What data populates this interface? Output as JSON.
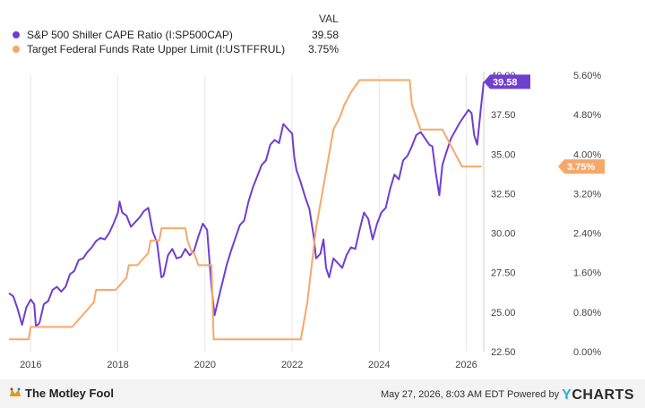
{
  "legend": {
    "header": "VAL",
    "items": [
      {
        "label": "S&P 500 Shiller CAPE Ratio (I:SP500CAP)",
        "value": "39.58",
        "color": "#6f3fd1"
      },
      {
        "label": "Target Federal Funds Rate Upper Limit (I:USTFFRUL)",
        "value": "3.75%",
        "color": "#f6a86a"
      }
    ]
  },
  "footer": {
    "brand": "The Motley Fool",
    "timestamp": "May 27, 2026, 8:03 AM EDT",
    "powered_by": "Powered by",
    "provider_prefix": "Y",
    "provider_rest": "CHARTS"
  },
  "chart_data": {
    "type": "line",
    "x_ticks": [
      "2016",
      "2018",
      "2020",
      "2022",
      "2024",
      "2026"
    ],
    "xlim": [
      2015.5,
      2026.4
    ],
    "y_left": {
      "ticks": [
        "22.50",
        "25.00",
        "27.50",
        "30.00",
        "32.50",
        "35.00",
        "37.50",
        "40.00"
      ],
      "ylim": [
        22.5,
        40.0
      ]
    },
    "y_right": {
      "ticks": [
        "0.00%",
        "0.80%",
        "1.60%",
        "2.40%",
        "3.20%",
        "4.00%",
        "4.80%",
        "5.60%"
      ],
      "ylim": [
        0.0,
        5.6
      ]
    },
    "grid": "vertical",
    "series": [
      {
        "name": "S&P 500 Shiller CAPE Ratio (I:SP500CAP)",
        "axis": "left",
        "color": "#6f3fd1",
        "end_label": "39.58",
        "points": [
          [
            2015.5,
            26.2
          ],
          [
            2015.6,
            26.0
          ],
          [
            2015.7,
            25.2
          ],
          [
            2015.8,
            24.2
          ],
          [
            2015.9,
            25.3
          ],
          [
            2016.0,
            25.8
          ],
          [
            2016.08,
            25.5
          ],
          [
            2016.12,
            24.1
          ],
          [
            2016.2,
            24.3
          ],
          [
            2016.3,
            25.5
          ],
          [
            2016.4,
            25.7
          ],
          [
            2016.5,
            26.4
          ],
          [
            2016.6,
            26.6
          ],
          [
            2016.7,
            26.3
          ],
          [
            2016.8,
            26.6
          ],
          [
            2016.9,
            27.4
          ],
          [
            2017.0,
            27.6
          ],
          [
            2017.1,
            28.3
          ],
          [
            2017.2,
            28.4
          ],
          [
            2017.3,
            28.8
          ],
          [
            2017.4,
            29.1
          ],
          [
            2017.5,
            29.5
          ],
          [
            2017.6,
            29.7
          ],
          [
            2017.7,
            29.6
          ],
          [
            2017.8,
            30.0
          ],
          [
            2017.9,
            30.6
          ],
          [
            2018.0,
            31.3
          ],
          [
            2018.04,
            32.0
          ],
          [
            2018.1,
            31.3
          ],
          [
            2018.2,
            31.1
          ],
          [
            2018.3,
            30.4
          ],
          [
            2018.4,
            30.7
          ],
          [
            2018.5,
            31.0
          ],
          [
            2018.6,
            31.4
          ],
          [
            2018.7,
            31.6
          ],
          [
            2018.8,
            30.1
          ],
          [
            2018.9,
            29.4
          ],
          [
            2019.0,
            27.2
          ],
          [
            2019.05,
            27.3
          ],
          [
            2019.15,
            28.6
          ],
          [
            2019.25,
            29.0
          ],
          [
            2019.35,
            28.4
          ],
          [
            2019.45,
            28.5
          ],
          [
            2019.55,
            29.0
          ],
          [
            2019.65,
            28.6
          ],
          [
            2019.75,
            28.9
          ],
          [
            2019.85,
            29.8
          ],
          [
            2019.95,
            30.6
          ],
          [
            2020.05,
            30.2
          ],
          [
            2020.15,
            26.6
          ],
          [
            2020.22,
            24.8
          ],
          [
            2020.35,
            26.3
          ],
          [
            2020.5,
            28.0
          ],
          [
            2020.6,
            28.9
          ],
          [
            2020.7,
            29.7
          ],
          [
            2020.8,
            30.5
          ],
          [
            2020.9,
            30.8
          ],
          [
            2021.0,
            32.0
          ],
          [
            2021.1,
            32.9
          ],
          [
            2021.2,
            33.6
          ],
          [
            2021.3,
            34.3
          ],
          [
            2021.4,
            34.6
          ],
          [
            2021.5,
            35.6
          ],
          [
            2021.6,
            35.9
          ],
          [
            2021.7,
            35.7
          ],
          [
            2021.8,
            36.9
          ],
          [
            2021.9,
            36.6
          ],
          [
            2022.0,
            36.3
          ],
          [
            2022.05,
            34.8
          ],
          [
            2022.1,
            34.0
          ],
          [
            2022.2,
            33.2
          ],
          [
            2022.3,
            32.3
          ],
          [
            2022.4,
            31.5
          ],
          [
            2022.5,
            29.7
          ],
          [
            2022.55,
            28.4
          ],
          [
            2022.65,
            28.7
          ],
          [
            2022.72,
            29.6
          ],
          [
            2022.78,
            27.8
          ],
          [
            2022.85,
            27.2
          ],
          [
            2022.95,
            28.4
          ],
          [
            2023.05,
            28.1
          ],
          [
            2023.15,
            27.8
          ],
          [
            2023.25,
            28.6
          ],
          [
            2023.35,
            29.1
          ],
          [
            2023.45,
            29.0
          ],
          [
            2023.55,
            30.2
          ],
          [
            2023.65,
            31.3
          ],
          [
            2023.75,
            30.9
          ],
          [
            2023.85,
            29.6
          ],
          [
            2023.95,
            30.6
          ],
          [
            2024.05,
            31.3
          ],
          [
            2024.15,
            31.6
          ],
          [
            2024.25,
            32.8
          ],
          [
            2024.35,
            33.7
          ],
          [
            2024.45,
            33.4
          ],
          [
            2024.55,
            34.6
          ],
          [
            2024.65,
            34.9
          ],
          [
            2024.75,
            35.5
          ],
          [
            2024.85,
            36.2
          ],
          [
            2024.95,
            36.4
          ],
          [
            2025.05,
            36.0
          ],
          [
            2025.15,
            35.6
          ],
          [
            2025.22,
            35.5
          ],
          [
            2025.3,
            33.8
          ],
          [
            2025.38,
            32.4
          ],
          [
            2025.45,
            34.3
          ],
          [
            2025.55,
            35.2
          ],
          [
            2025.65,
            36.0
          ],
          [
            2025.75,
            36.5
          ],
          [
            2025.85,
            37.0
          ],
          [
            2025.95,
            37.4
          ],
          [
            2026.05,
            37.8
          ],
          [
            2026.12,
            37.6
          ],
          [
            2026.18,
            36.2
          ],
          [
            2026.25,
            35.6
          ],
          [
            2026.33,
            37.8
          ],
          [
            2026.4,
            39.58
          ]
        ]
      },
      {
        "name": "Target Federal Funds Rate Upper Limit (I:USTFFRUL)",
        "axis": "right",
        "color": "#f6a86a",
        "end_label": "3.75%",
        "points": [
          [
            2015.5,
            0.25
          ],
          [
            2015.95,
            0.25
          ],
          [
            2016.0,
            0.5
          ],
          [
            2016.95,
            0.5
          ],
          [
            2017.2,
            0.75
          ],
          [
            2017.45,
            1.0
          ],
          [
            2017.5,
            1.25
          ],
          [
            2017.95,
            1.25
          ],
          [
            2018.2,
            1.5
          ],
          [
            2018.25,
            1.75
          ],
          [
            2018.45,
            1.75
          ],
          [
            2018.7,
            2.0
          ],
          [
            2018.75,
            2.25
          ],
          [
            2018.95,
            2.25
          ],
          [
            2019.0,
            2.5
          ],
          [
            2019.55,
            2.5
          ],
          [
            2019.6,
            2.25
          ],
          [
            2019.7,
            2.0
          ],
          [
            2019.75,
            2.0
          ],
          [
            2019.85,
            1.75
          ],
          [
            2020.15,
            1.75
          ],
          [
            2020.2,
            0.25
          ],
          [
            2022.2,
            0.25
          ],
          [
            2022.25,
            0.5
          ],
          [
            2022.35,
            1.0
          ],
          [
            2022.45,
            1.75
          ],
          [
            2022.55,
            2.5
          ],
          [
            2022.7,
            3.25
          ],
          [
            2022.85,
            4.0
          ],
          [
            2022.95,
            4.5
          ],
          [
            2023.1,
            4.75
          ],
          [
            2023.2,
            5.0
          ],
          [
            2023.35,
            5.25
          ],
          [
            2023.55,
            5.5
          ],
          [
            2024.7,
            5.5
          ],
          [
            2024.75,
            5.0
          ],
          [
            2024.85,
            4.75
          ],
          [
            2024.95,
            4.5
          ],
          [
            2025.45,
            4.5
          ],
          [
            2025.6,
            4.25
          ],
          [
            2025.75,
            4.0
          ],
          [
            2025.9,
            3.75
          ],
          [
            2026.35,
            3.75
          ]
        ]
      }
    ]
  }
}
